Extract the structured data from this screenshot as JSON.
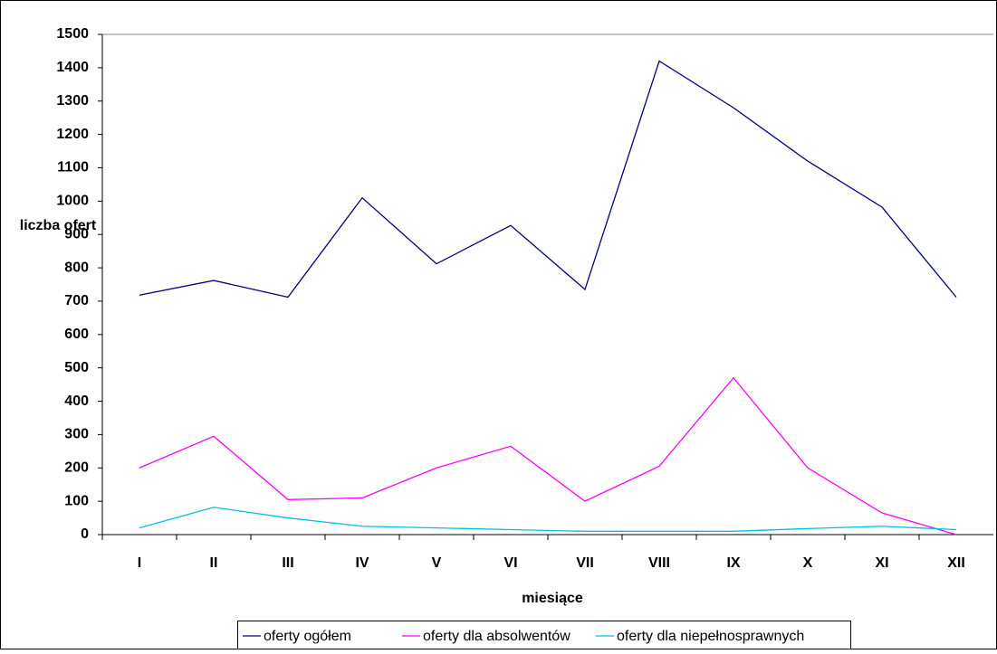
{
  "chart_data": {
    "type": "line",
    "x_label": "miesiące",
    "y_label": "liczba ofert",
    "categories": [
      "I",
      "II",
      "III",
      "IV",
      "V",
      "VI",
      "VII",
      "VIII",
      "IX",
      "X",
      "XI",
      "XII"
    ],
    "series": [
      {
        "name": "oferty ogółem",
        "color": "#000080",
        "values": [
          718,
          762,
          712,
          1010,
          812,
          927,
          735,
          1420,
          1280,
          1120,
          982,
          712
        ]
      },
      {
        "name": "oferty dla absolwentów",
        "color": "#ff00ff",
        "values": [
          200,
          295,
          105,
          110,
          200,
          265,
          100,
          205,
          470,
          200,
          65,
          0
        ]
      },
      {
        "name": "oferty dla niepełnosprawnych",
        "color": "#00c0e0",
        "values": [
          20,
          82,
          50,
          25,
          20,
          15,
          10,
          10,
          10,
          18,
          25,
          15
        ]
      }
    ],
    "ylim": [
      0,
      1500
    ],
    "yticks": [
      0,
      100,
      200,
      300,
      400,
      500,
      600,
      700,
      800,
      900,
      1000,
      1100,
      1200,
      1300,
      1400,
      1500
    ],
    "legend": "bottom"
  }
}
